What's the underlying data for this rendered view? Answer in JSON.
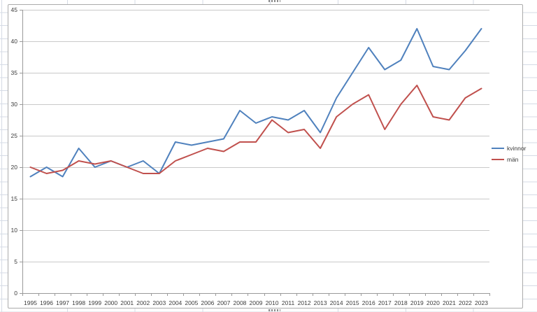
{
  "chart_data": {
    "type": "line",
    "title": "",
    "xlabel": "",
    "ylabel": "",
    "x": [
      1995,
      1996,
      1997,
      1998,
      1999,
      2000,
      2001,
      2002,
      2003,
      2004,
      2005,
      2006,
      2007,
      2008,
      2009,
      2010,
      2011,
      2012,
      2013,
      2014,
      2015,
      2016,
      2017,
      2018,
      2019,
      2020,
      2021,
      2022,
      2023
    ],
    "series": [
      {
        "name": "kvinnor",
        "color": "#4F81BD",
        "values": [
          18.5,
          20,
          18.5,
          23,
          20,
          21,
          20,
          21,
          19,
          24,
          23.5,
          24,
          24.5,
          29,
          27,
          28,
          27.5,
          29,
          25.5,
          31,
          35,
          39,
          35.5,
          37,
          42,
          36,
          35.5,
          38.5,
          42
        ]
      },
      {
        "name": "män",
        "color": "#C0504D",
        "values": [
          20,
          19,
          19.5,
          21,
          20.5,
          21,
          20,
          19,
          19,
          21,
          22,
          23,
          22.5,
          24,
          24,
          27.5,
          25.5,
          26,
          23,
          28,
          30,
          31.5,
          26,
          30,
          33,
          28,
          27.5,
          31,
          32.5
        ]
      }
    ],
    "ylim": [
      0,
      45
    ],
    "yticks": [
      0,
      5,
      10,
      15,
      20,
      25,
      30,
      35,
      40,
      45
    ],
    "grid": true,
    "legend_position": "right"
  },
  "colors": {
    "gridline": "#c9c9c9",
    "axis": "#9a9a9a",
    "tick_label": "#3c3c3c",
    "sheet_grid": "#d5dbe5",
    "chart_border": "#ababab"
  }
}
